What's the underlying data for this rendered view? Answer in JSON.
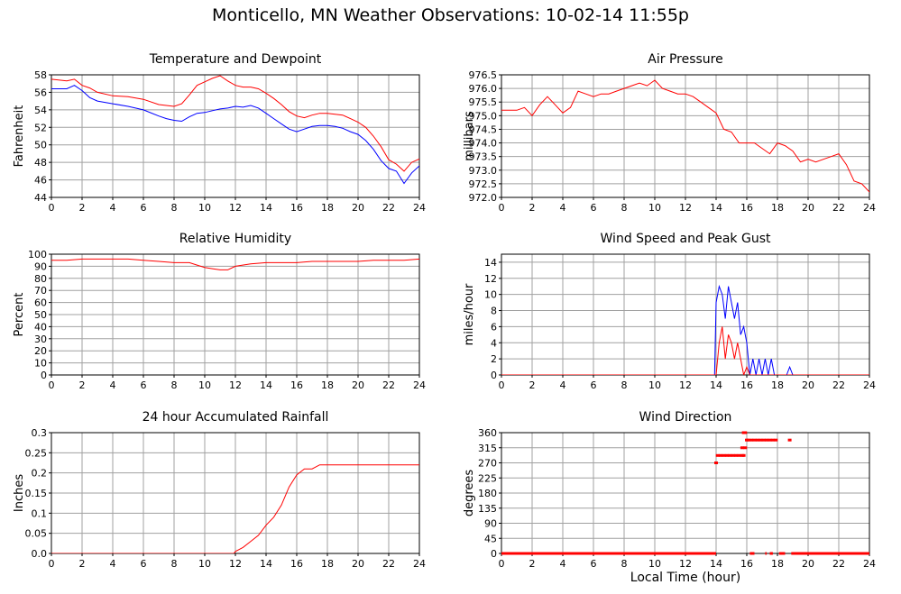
{
  "title": "Monticello, MN Weather Observations: 10-02-14 11:55p",
  "xaxis_title": "Local Time (hour)",
  "colors": {
    "red": "#ff0000",
    "blue": "#0000ff",
    "grid": "#a0a0a0",
    "axis": "#000000"
  },
  "chart_data": [
    {
      "id": "temperature",
      "type": "line",
      "title": "Temperature and Dewpoint",
      "ylabel": "Fahrenheit",
      "xlim": [
        0,
        24
      ],
      "ylim": [
        44,
        58
      ],
      "xticks": [
        0,
        2,
        4,
        6,
        8,
        10,
        12,
        14,
        16,
        18,
        20,
        22,
        24
      ],
      "yticks": [
        44,
        46,
        48,
        50,
        52,
        54,
        56,
        58
      ],
      "grid": true,
      "series": [
        {
          "color": "#ff0000",
          "x": [
            0,
            1,
            1.5,
            2,
            2.5,
            3,
            4,
            5,
            6,
            7,
            7.5,
            8,
            8.5,
            9,
            9.5,
            10,
            10.5,
            11,
            11.5,
            12,
            12.5,
            13,
            13.5,
            14,
            14.5,
            15,
            15.5,
            16,
            16.5,
            17,
            17.5,
            18,
            18.5,
            19,
            19.5,
            20,
            20.5,
            21,
            21.5,
            22,
            22.5,
            23,
            23.5,
            24
          ],
          "y": [
            57.5,
            57.3,
            57.5,
            56.8,
            56.5,
            56,
            55.6,
            55.5,
            55.2,
            54.6,
            54.5,
            54.4,
            54.7,
            55.7,
            56.8,
            57.2,
            57.6,
            57.9,
            57.3,
            56.8,
            56.6,
            56.6,
            56.4,
            55.9,
            55.3,
            54.6,
            53.8,
            53.3,
            53.1,
            53.4,
            53.6,
            53.6,
            53.5,
            53.4,
            53,
            52.6,
            52,
            51,
            49.8,
            48.3,
            47.8,
            47,
            48,
            48.4
          ]
        },
        {
          "color": "#0000ff",
          "x": [
            0,
            1,
            1.5,
            2,
            2.5,
            3,
            4,
            5,
            6,
            7,
            7.5,
            8,
            8.5,
            9,
            9.5,
            10,
            10.5,
            11,
            11.5,
            12,
            12.5,
            13,
            13.5,
            14,
            14.5,
            15,
            15.5,
            16,
            16.5,
            17,
            17.5,
            18,
            18.5,
            19,
            19.5,
            20,
            20.5,
            21,
            21.5,
            22,
            22.5,
            23,
            23.5,
            24
          ],
          "y": [
            56.4,
            56.4,
            56.8,
            56.2,
            55.4,
            55,
            54.7,
            54.4,
            54,
            53.3,
            53,
            52.8,
            52.7,
            53.2,
            53.6,
            53.7,
            53.9,
            54.1,
            54.2,
            54.4,
            54.3,
            54.5,
            54.2,
            53.6,
            53,
            52.4,
            51.8,
            51.5,
            51.8,
            52.1,
            52.2,
            52.2,
            52.1,
            51.9,
            51.5,
            51.2,
            50.5,
            49.5,
            48.2,
            47.3,
            47,
            45.6,
            46.8,
            47.6
          ]
        }
      ]
    },
    {
      "id": "pressure",
      "type": "line",
      "title": "Air Pressure",
      "ylabel": "millibars",
      "xlim": [
        0,
        24
      ],
      "ylim": [
        972.0,
        976.5
      ],
      "xticks": [
        0,
        2,
        4,
        6,
        8,
        10,
        12,
        14,
        16,
        18,
        20,
        22,
        24
      ],
      "yticks": [
        "972.0",
        "972.5",
        "973.0",
        "973.5",
        "974.0",
        "974.5",
        "975.0",
        "975.5",
        "976.0",
        "976.5"
      ],
      "grid": true,
      "series": [
        {
          "color": "#ff0000",
          "x": [
            0,
            0.5,
            1,
            1.5,
            2,
            2.5,
            3,
            3.5,
            4,
            4.5,
            5,
            5.5,
            6,
            6.5,
            7,
            7.5,
            8,
            8.5,
            9,
            9.5,
            10,
            10.5,
            11,
            11.5,
            12,
            12.5,
            13,
            13.5,
            14,
            14.5,
            15,
            15.5,
            16,
            16.5,
            17,
            17.5,
            18,
            18.5,
            19,
            19.5,
            20,
            20.5,
            21,
            21.5,
            22,
            22.5,
            23,
            23.5,
            24
          ],
          "y": [
            975.2,
            975.2,
            975.2,
            975.3,
            975.0,
            975.4,
            975.7,
            975.4,
            975.1,
            975.3,
            975.9,
            975.8,
            975.7,
            975.8,
            975.8,
            975.9,
            976.0,
            976.1,
            976.2,
            976.1,
            976.3,
            976.0,
            975.9,
            975.8,
            975.8,
            975.7,
            975.5,
            975.3,
            975.1,
            974.5,
            974.4,
            974.0,
            974.0,
            974.0,
            973.8,
            973.6,
            974.0,
            973.9,
            973.7,
            973.3,
            973.4,
            973.3,
            973.4,
            973.5,
            973.6,
            973.2,
            972.6,
            972.5,
            972.2
          ]
        }
      ]
    },
    {
      "id": "humidity",
      "type": "line",
      "title": "Relative Humidity",
      "ylabel": "Percent",
      "xlim": [
        0,
        24
      ],
      "ylim": [
        0,
        100
      ],
      "xticks": [
        0,
        2,
        4,
        6,
        8,
        10,
        12,
        14,
        16,
        18,
        20,
        22,
        24
      ],
      "yticks": [
        0,
        10,
        20,
        30,
        40,
        50,
        60,
        70,
        80,
        90,
        100
      ],
      "grid": true,
      "series": [
        {
          "color": "#ff0000",
          "x": [
            0,
            1,
            2,
            3,
            4,
            5,
            6,
            7,
            8,
            9,
            9.5,
            10,
            10.5,
            11,
            11.5,
            12,
            13,
            14,
            15,
            16,
            17,
            18,
            19,
            20,
            21,
            22,
            23,
            24
          ],
          "y": [
            95,
            95,
            96,
            96,
            96,
            96,
            95,
            94,
            93,
            93,
            91,
            89,
            88,
            87,
            87,
            90,
            92,
            93,
            93,
            93,
            94,
            94,
            94,
            94,
            95,
            95,
            95,
            96
          ]
        }
      ]
    },
    {
      "id": "wind_speed",
      "type": "line",
      "title": "Wind Speed and Peak Gust",
      "ylabel": "miles/hour",
      "xlim": [
        0,
        24
      ],
      "ylim": [
        0,
        15
      ],
      "xticks": [
        0,
        2,
        4,
        6,
        8,
        10,
        12,
        14,
        16,
        18,
        20,
        22,
        24
      ],
      "yticks": [
        0,
        2,
        4,
        6,
        8,
        10,
        12,
        14
      ],
      "grid": true,
      "series": [
        {
          "color": "#0000ff",
          "x": [
            0,
            13.9,
            14,
            14.2,
            14.4,
            14.6,
            14.8,
            15,
            15.2,
            15.4,
            15.6,
            15.8,
            16,
            16.2,
            16.4,
            16.6,
            16.8,
            17,
            17.2,
            17.4,
            17.6,
            17.8,
            18,
            18.2,
            18.4,
            18.6,
            18.8,
            19,
            24
          ],
          "y": [
            0,
            0,
            9,
            11,
            10,
            7,
            11,
            9,
            7,
            9,
            5,
            6,
            4,
            0,
            2,
            0,
            2,
            0,
            2,
            0,
            2,
            0,
            0,
            0,
            0,
            0,
            1,
            0,
            0
          ]
        },
        {
          "color": "#ff0000",
          "x": [
            0,
            14,
            14.2,
            14.4,
            14.6,
            14.8,
            15,
            15.2,
            15.4,
            15.6,
            15.8,
            16,
            16.2,
            24
          ],
          "y": [
            0,
            0,
            4,
            6,
            2,
            5,
            4,
            2,
            4,
            2,
            0,
            1,
            0,
            0
          ]
        }
      ]
    },
    {
      "id": "rainfall",
      "type": "line",
      "title": "24 hour Accumulated Rainfall",
      "ylabel": "Inches",
      "xlim": [
        0,
        24
      ],
      "ylim": [
        0,
        0.3
      ],
      "xticks": [
        0,
        2,
        4,
        6,
        8,
        10,
        12,
        14,
        16,
        18,
        20,
        22,
        24
      ],
      "yticks": [
        "0.0",
        "0.05",
        "0.1",
        "0.15",
        "0.2",
        "0.25",
        "0.3"
      ],
      "grid": true,
      "series": [
        {
          "color": "#ff0000",
          "x": [
            0,
            11.9,
            12,
            12.5,
            13,
            13.5,
            14,
            14.5,
            15,
            15.5,
            16,
            16.5,
            17,
            17.5,
            24
          ],
          "y": [
            0,
            0,
            0.005,
            0.015,
            0.03,
            0.045,
            0.07,
            0.09,
            0.12,
            0.165,
            0.195,
            0.21,
            0.21,
            0.22,
            0.22
          ]
        }
      ]
    },
    {
      "id": "wind_direction",
      "type": "scatter",
      "title": "Wind Direction",
      "ylabel": "degrees",
      "xlim": [
        0,
        24
      ],
      "ylim": [
        0,
        360
      ],
      "xticks": [
        0,
        2,
        4,
        6,
        8,
        10,
        12,
        14,
        16,
        18,
        20,
        22,
        24
      ],
      "yticks": [
        0,
        45,
        90,
        135,
        180,
        225,
        270,
        315,
        360
      ],
      "grid": true,
      "series": [
        {
          "color": "#ff0000",
          "x": [
            14,
            14.1,
            14.3,
            14.5,
            14.7,
            14.9,
            15.1,
            15.3,
            15.5,
            15.7,
            15.8,
            15.7,
            15.9,
            16,
            16.1,
            16.3,
            16.5,
            16.7,
            16.9,
            17.1,
            17.3,
            17.5,
            17.7,
            17.9,
            18.8
          ],
          "y": [
            270,
            292,
            292,
            292,
            292,
            292,
            292,
            292,
            292,
            292,
            292,
            315,
            315,
            338,
            338,
            338,
            338,
            338,
            338,
            338,
            338,
            338,
            338,
            338,
            338
          ]
        },
        {
          "color": "#ff0000",
          "x": [
            15.8,
            15.9
          ],
          "y": [
            360,
            360
          ]
        }
      ],
      "zero_segments": [
        [
          0,
          14
        ],
        [
          16.2,
          16.5
        ],
        [
          17.2,
          17.3
        ],
        [
          17.5,
          17.7
        ],
        [
          18.1,
          18.5
        ],
        [
          18.9,
          24
        ]
      ]
    }
  ]
}
